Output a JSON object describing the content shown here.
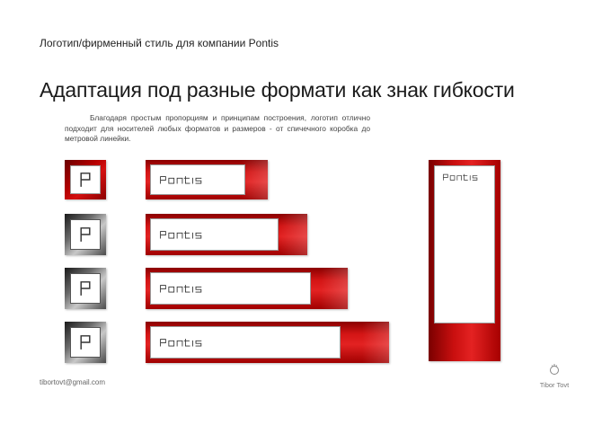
{
  "header": {
    "title": "Логотип/фирменный стиль для компании Pontis"
  },
  "main": {
    "title": "Адаптация под разные формати как знак гибкости",
    "description": "Благодаря простым пропорциям и принципам построения, логотип отлично подходит для носителей любых форматов и размеров - от спичечного коробка до метровой линейки."
  },
  "logo": {
    "wordmark": "PONTIS",
    "monogram": "P"
  },
  "footer": {
    "email": "tibortovt@gmail.com",
    "author": "Tibor Tovt"
  },
  "colors": {
    "accent": "#cc1111",
    "accent_dark": "#7a0000",
    "gray": "#6a6a6a"
  }
}
